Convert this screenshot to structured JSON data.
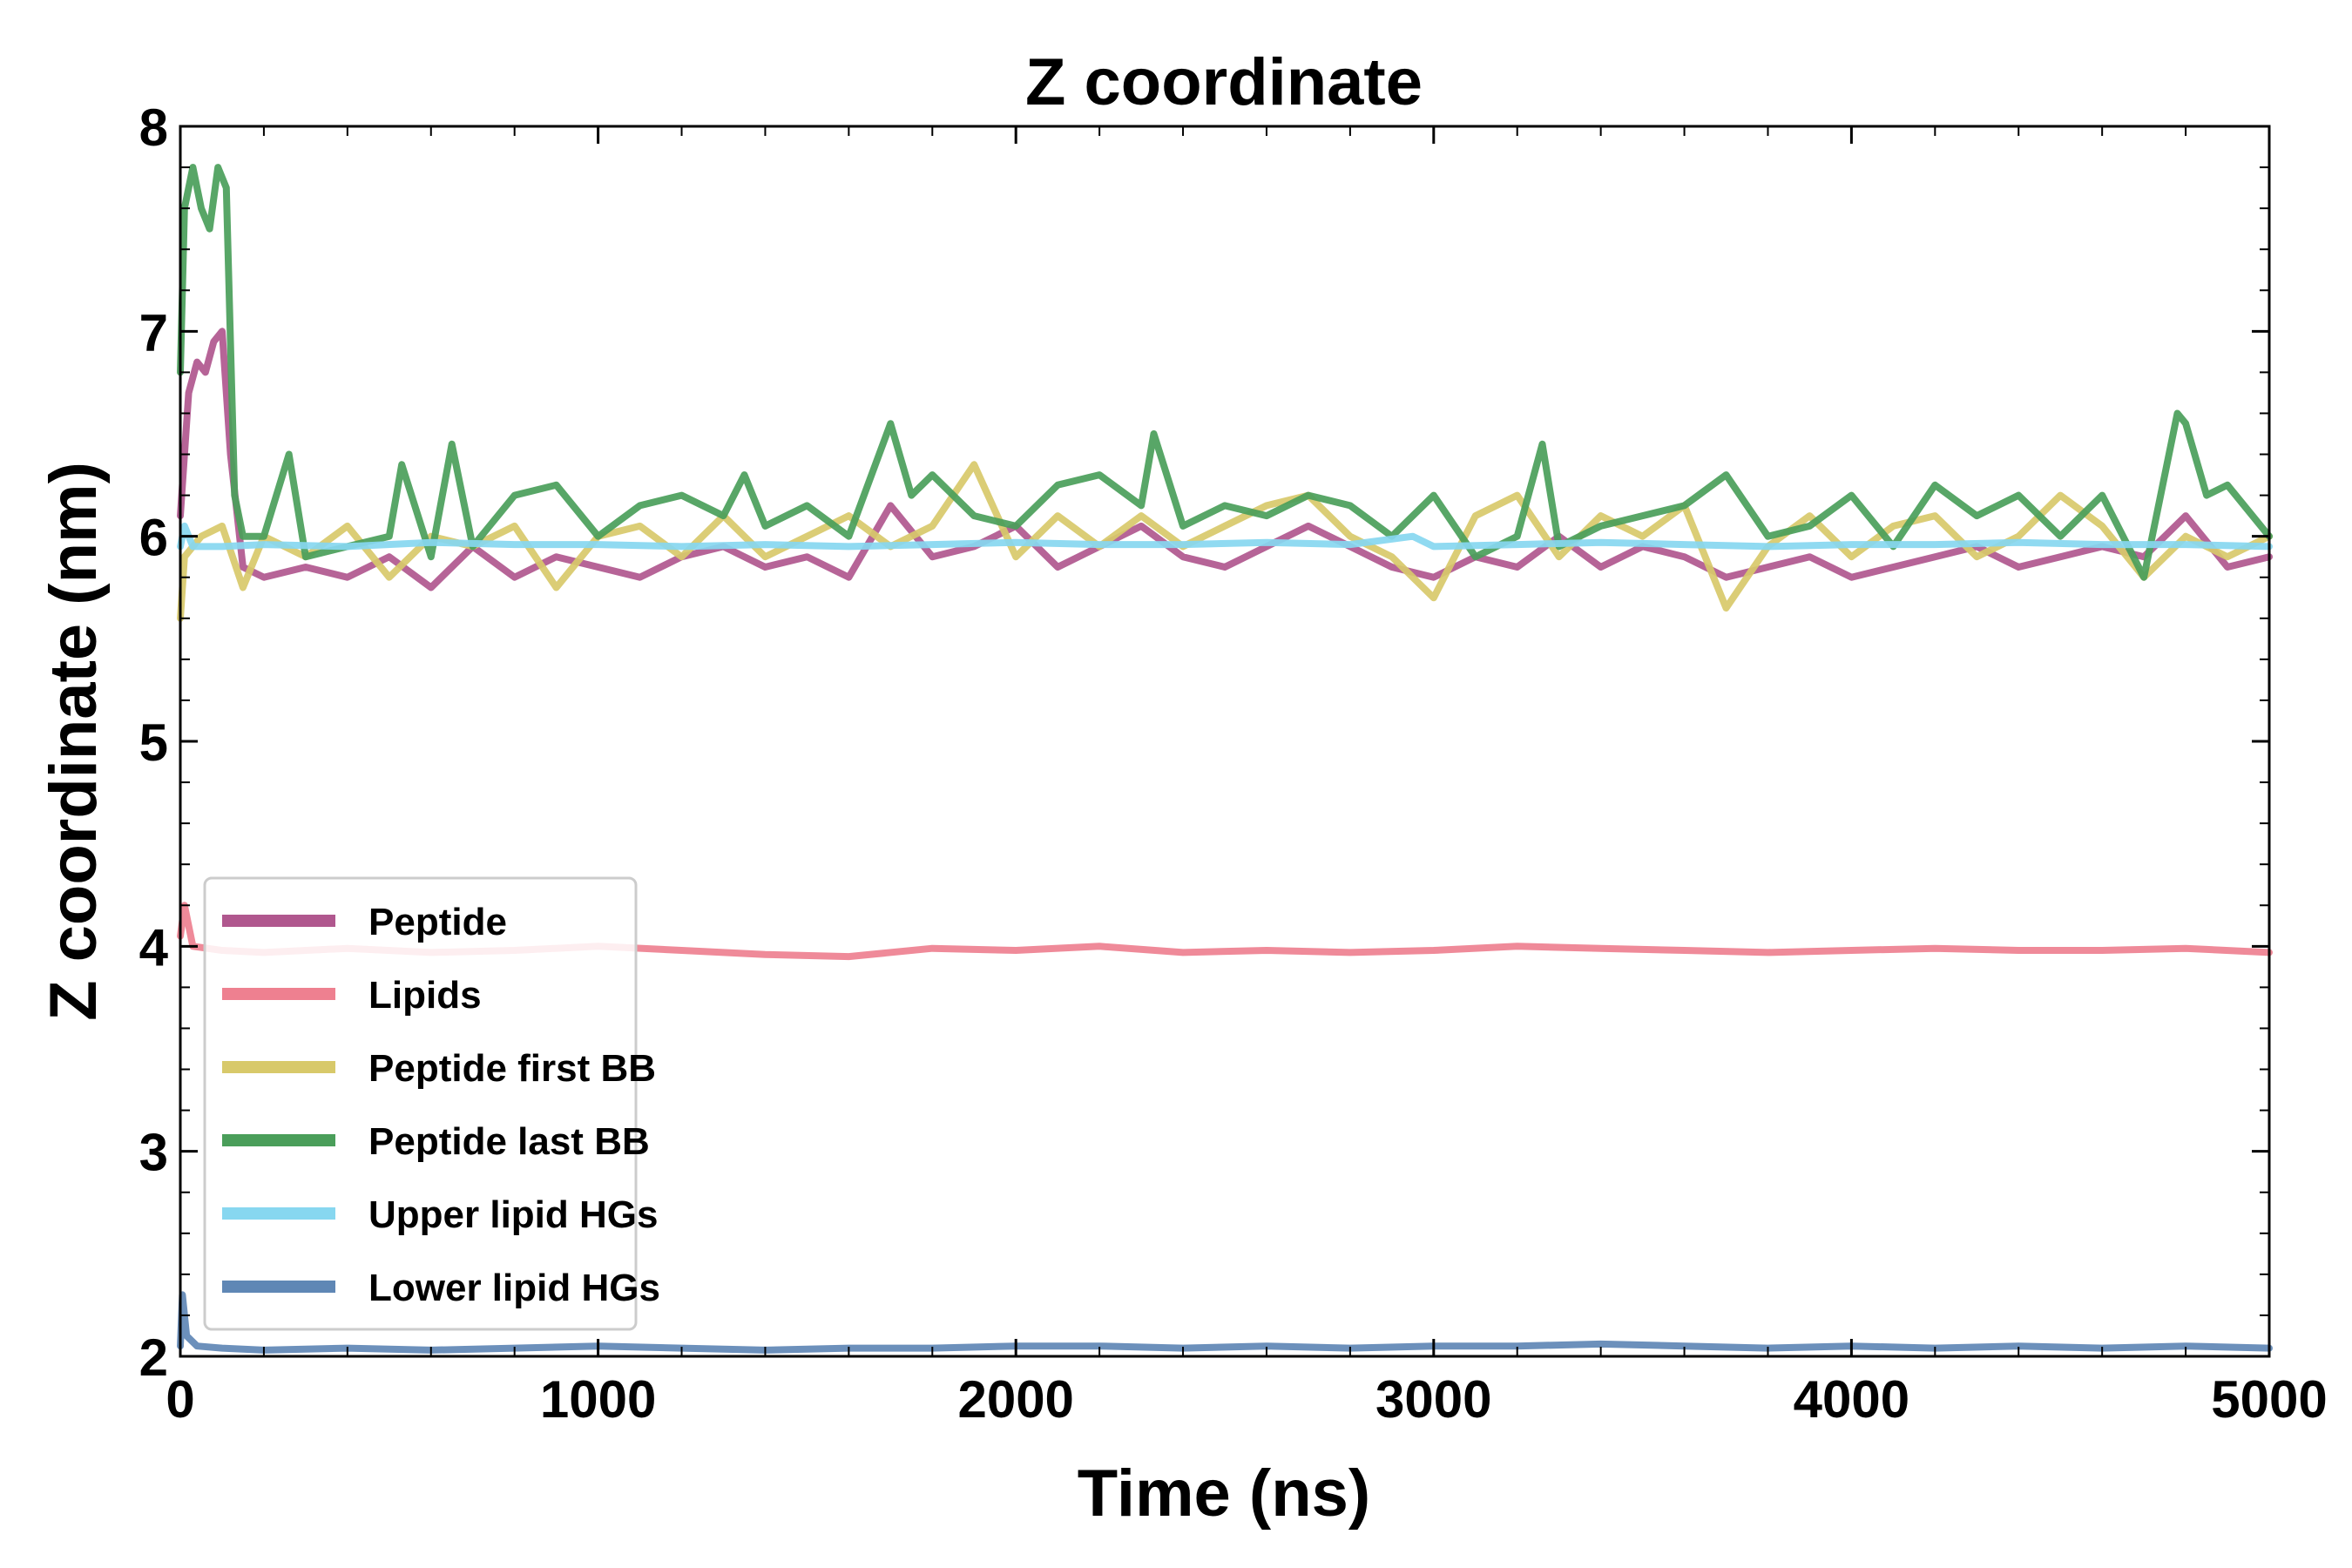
{
  "chart_data": {
    "type": "line",
    "title": "Z coordinate",
    "xlabel": "Time (ns)",
    "ylabel": "Z coordinate (nm)",
    "xlim": [
      0,
      5000
    ],
    "ylim": [
      2,
      8
    ],
    "xticks": [
      "0",
      "1000",
      "2000",
      "3000",
      "4000",
      "5000"
    ],
    "yticks": [
      "2",
      "3",
      "4",
      "5",
      "6",
      "7",
      "8"
    ],
    "grid": false,
    "legend_position": "lower-left",
    "series": [
      {
        "name": "Peptide",
        "color": "#b0578e",
        "x": [
          0,
          20,
          40,
          60,
          80,
          100,
          120,
          150,
          200,
          300,
          400,
          500,
          600,
          700,
          800,
          900,
          1000,
          1100,
          1200,
          1300,
          1400,
          1500,
          1600,
          1700,
          1800,
          1900,
          2000,
          2100,
          2200,
          2300,
          2400,
          2500,
          2600,
          2700,
          2800,
          2900,
          3000,
          3100,
          3200,
          3300,
          3400,
          3500,
          3600,
          3700,
          3800,
          3900,
          4000,
          4100,
          4200,
          4300,
          4400,
          4500,
          4600,
          4700,
          4800,
          4900,
          5000
        ],
        "y": [
          6.1,
          6.7,
          6.85,
          6.8,
          6.95,
          7.0,
          6.4,
          5.85,
          5.8,
          5.85,
          5.8,
          5.9,
          5.75,
          5.95,
          5.8,
          5.9,
          5.85,
          5.8,
          5.9,
          5.95,
          5.85,
          5.9,
          5.8,
          6.15,
          5.9,
          5.95,
          6.05,
          5.85,
          5.95,
          6.05,
          5.9,
          5.85,
          5.95,
          6.05,
          5.95,
          5.85,
          5.8,
          5.9,
          5.85,
          6.0,
          5.85,
          5.95,
          5.9,
          5.8,
          5.85,
          5.9,
          5.8,
          5.85,
          5.9,
          5.95,
          5.85,
          5.9,
          5.95,
          5.9,
          6.1,
          5.85,
          5.9
        ]
      },
      {
        "name": "Lipids",
        "color": "#ee8090",
        "x": [
          0,
          10,
          30,
          100,
          200,
          400,
          600,
          800,
          1000,
          1200,
          1400,
          1600,
          1800,
          2000,
          2200,
          2400,
          2600,
          2800,
          3000,
          3200,
          3400,
          3600,
          3800,
          4000,
          4200,
          4400,
          4600,
          4800,
          5000
        ],
        "y": [
          4.05,
          4.2,
          4.0,
          3.98,
          3.97,
          3.99,
          3.97,
          3.98,
          4.0,
          3.98,
          3.96,
          3.95,
          3.99,
          3.98,
          4.0,
          3.97,
          3.98,
          3.97,
          3.98,
          4.0,
          3.99,
          3.98,
          3.97,
          3.98,
          3.99,
          3.98,
          3.98,
          3.99,
          3.97
        ]
      },
      {
        "name": "Peptide first BB",
        "color": "#d8c96a",
        "x": [
          0,
          10,
          50,
          100,
          150,
          200,
          300,
          400,
          500,
          600,
          700,
          800,
          900,
          1000,
          1100,
          1200,
          1300,
          1400,
          1500,
          1600,
          1700,
          1800,
          1900,
          2000,
          2100,
          2200,
          2300,
          2400,
          2500,
          2600,
          2700,
          2800,
          2900,
          3000,
          3100,
          3200,
          3300,
          3400,
          3500,
          3600,
          3700,
          3800,
          3900,
          4000,
          4100,
          4200,
          4300,
          4400,
          4500,
          4600,
          4700,
          4800,
          4900,
          5000
        ],
        "y": [
          5.6,
          5.9,
          6.0,
          6.05,
          5.75,
          6.0,
          5.9,
          6.05,
          5.8,
          6.0,
          5.95,
          6.05,
          5.75,
          6.0,
          6.05,
          5.9,
          6.1,
          5.9,
          6.0,
          6.1,
          5.95,
          6.05,
          6.35,
          5.9,
          6.1,
          5.95,
          6.1,
          5.95,
          6.05,
          6.15,
          6.2,
          6.0,
          5.9,
          5.7,
          6.1,
          6.2,
          5.9,
          6.1,
          6.0,
          6.15,
          5.65,
          5.95,
          6.1,
          5.9,
          6.05,
          6.1,
          5.9,
          6.0,
          6.2,
          6.05,
          5.8,
          6.0,
          5.9,
          6.0
        ]
      },
      {
        "name": "Peptide last BB",
        "color": "#4a9e5a",
        "x": [
          0,
          10,
          30,
          50,
          70,
          90,
          110,
          130,
          150,
          200,
          260,
          300,
          400,
          500,
          530,
          600,
          650,
          700,
          800,
          900,
          1000,
          1100,
          1200,
          1300,
          1350,
          1400,
          1500,
          1600,
          1700,
          1750,
          1800,
          1900,
          2000,
          2100,
          2200,
          2300,
          2330,
          2400,
          2500,
          2600,
          2700,
          2800,
          2900,
          3000,
          3100,
          3200,
          3260,
          3300,
          3400,
          3500,
          3600,
          3700,
          3800,
          3900,
          4000,
          4100,
          4200,
          4300,
          4400,
          4500,
          4600,
          4700,
          4780,
          4800,
          4850,
          4900,
          5000
        ],
        "y": [
          6.8,
          7.6,
          7.8,
          7.6,
          7.5,
          7.8,
          7.7,
          6.2,
          6.0,
          6.0,
          6.4,
          5.9,
          5.95,
          6.0,
          6.35,
          5.9,
          6.45,
          5.95,
          6.2,
          6.25,
          6.0,
          6.15,
          6.2,
          6.1,
          6.3,
          6.05,
          6.15,
          6.0,
          6.55,
          6.2,
          6.3,
          6.1,
          6.05,
          6.25,
          6.3,
          6.15,
          6.5,
          6.05,
          6.15,
          6.1,
          6.2,
          6.15,
          6.0,
          6.2,
          5.9,
          6.0,
          6.45,
          5.95,
          6.05,
          6.1,
          6.15,
          6.3,
          6.0,
          6.05,
          6.2,
          5.95,
          6.25,
          6.1,
          6.2,
          6.0,
          6.2,
          5.8,
          6.6,
          6.55,
          6.2,
          6.25,
          6.0
        ]
      },
      {
        "name": "Upper lipid HGs",
        "color": "#87d7f0",
        "x": [
          0,
          10,
          30,
          100,
          200,
          400,
          600,
          800,
          1000,
          1200,
          1400,
          1600,
          1800,
          2000,
          2200,
          2400,
          2600,
          2800,
          2950,
          3000,
          3200,
          3400,
          3600,
          3800,
          4000,
          4200,
          4400,
          4600,
          4800,
          5000
        ],
        "y": [
          5.95,
          6.05,
          5.95,
          5.95,
          5.96,
          5.95,
          5.97,
          5.96,
          5.96,
          5.95,
          5.96,
          5.95,
          5.96,
          5.97,
          5.96,
          5.96,
          5.97,
          5.96,
          6.0,
          5.95,
          5.96,
          5.97,
          5.96,
          5.95,
          5.96,
          5.96,
          5.97,
          5.96,
          5.96,
          5.95
        ]
      },
      {
        "name": "Lower lipid HGs",
        "color": "#5f87b5",
        "x": [
          0,
          5,
          15,
          40,
          100,
          200,
          400,
          600,
          800,
          1000,
          1200,
          1400,
          1600,
          1800,
          2000,
          2200,
          2400,
          2600,
          2800,
          3000,
          3200,
          3400,
          3600,
          3800,
          4000,
          4200,
          4400,
          4600,
          4800,
          5000
        ],
        "y": [
          2.05,
          2.3,
          2.1,
          2.05,
          2.04,
          2.03,
          2.04,
          2.03,
          2.04,
          2.05,
          2.04,
          2.03,
          2.04,
          2.04,
          2.05,
          2.05,
          2.04,
          2.05,
          2.04,
          2.05,
          2.05,
          2.06,
          2.05,
          2.04,
          2.05,
          2.04,
          2.05,
          2.04,
          2.05,
          2.04
        ]
      }
    ]
  }
}
